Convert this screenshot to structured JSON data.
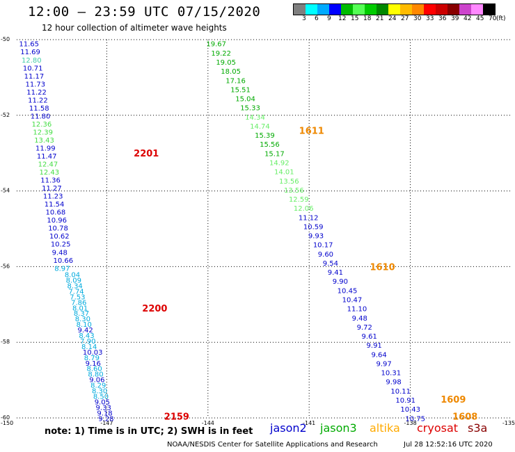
{
  "title": "12:00 – 23:59 UTC 07/15/2020",
  "subtitle": "12 hour collection of altimeter wave heights",
  "legend": {
    "unit": "(ft)",
    "ticks": [
      "3",
      "6",
      "9",
      "12",
      "15",
      "18",
      "21",
      "24",
      "27",
      "30",
      "33",
      "36",
      "39",
      "42",
      "45",
      "70"
    ],
    "colors": [
      "#7f7f7f",
      "#00ffff",
      "#00aaff",
      "#0000ff",
      "#00bb00",
      "#55ff55",
      "#00cc00",
      "#008800",
      "#ffff00",
      "#ffbb00",
      "#ff8800",
      "#ff0000",
      "#cc0000",
      "#880000",
      "#cc44cc",
      "#ff88ff",
      "#000000"
    ]
  },
  "map": {
    "lon_range": [
      -150,
      -135
    ],
    "lat_range": [
      -50,
      -60
    ],
    "lon_ticks": [
      "-150",
      "-147",
      "-144",
      "-141",
      "-138",
      "-135"
    ],
    "lat_ticks": [
      "-50",
      "-52",
      "-54",
      "-56",
      "-58",
      "-60"
    ],
    "grid": "dotted"
  },
  "tracks": [
    {
      "name": "track-west",
      "points": [
        {
          "v": "11.65",
          "c": "#0000cc"
        },
        {
          "v": "11.69",
          "c": "#0000cc"
        },
        {
          "v": "12.80",
          "c": "#44ccaa"
        },
        {
          "v": "10.71",
          "c": "#0000cc"
        },
        {
          "v": "11.17",
          "c": "#0000cc"
        },
        {
          "v": "11.73",
          "c": "#0000cc"
        },
        {
          "v": "11.22",
          "c": "#0000cc"
        },
        {
          "v": "11.22",
          "c": "#0000cc"
        },
        {
          "v": "11.58",
          "c": "#0000cc"
        },
        {
          "v": "11.80",
          "c": "#0000cc"
        },
        {
          "v": "12.36",
          "c": "#44dd44"
        },
        {
          "v": "12.39",
          "c": "#44dd44"
        },
        {
          "v": "13.43",
          "c": "#44dd44"
        },
        {
          "v": "11.99",
          "c": "#0000cc"
        },
        {
          "v": "11.47",
          "c": "#0000cc"
        },
        {
          "v": "12.47",
          "c": "#44dd44"
        },
        {
          "v": "12.43",
          "c": "#44dd44"
        },
        {
          "v": "11.36",
          "c": "#0000cc"
        },
        {
          "v": "11.27",
          "c": "#0000cc"
        },
        {
          "v": "11.23",
          "c": "#0000cc"
        },
        {
          "v": "11.54",
          "c": "#0000cc"
        },
        {
          "v": "10.68",
          "c": "#0000cc"
        },
        {
          "v": "10.96",
          "c": "#0000cc"
        },
        {
          "v": "10.78",
          "c": "#0000cc"
        },
        {
          "v": "10.62",
          "c": "#0000cc"
        },
        {
          "v": "10.25",
          "c": "#0000cc"
        },
        {
          "v": "9.48",
          "c": "#0000cc"
        },
        {
          "v": "10.66",
          "c": "#0000cc"
        },
        {
          "v": "8.97",
          "c": "#00aadd"
        }
      ]
    },
    {
      "name": "track-west-lower-a",
      "points": [
        {
          "v": "8.04",
          "c": "#00aadd"
        },
        {
          "v": "8.09",
          "c": "#00aadd"
        },
        {
          "v": "8.34",
          "c": "#00aadd"
        },
        {
          "v": "7.74",
          "c": "#00aadd"
        },
        {
          "v": "7.53",
          "c": "#00aadd"
        },
        {
          "v": "7.86",
          "c": "#00aadd"
        },
        {
          "v": "8.01",
          "c": "#00aadd"
        },
        {
          "v": "8.37",
          "c": "#00aadd"
        },
        {
          "v": "8.30",
          "c": "#00aadd"
        },
        {
          "v": "8.10",
          "c": "#00aadd"
        },
        {
          "v": "9.42",
          "c": "#0000cc"
        },
        {
          "v": "8.43",
          "c": "#00aadd"
        },
        {
          "v": "7.90",
          "c": "#00aadd"
        },
        {
          "v": "8.14",
          "c": "#00aadd"
        },
        {
          "v": "10.03",
          "c": "#0000cc"
        },
        {
          "v": "8.79",
          "c": "#00aadd"
        },
        {
          "v": "9.16",
          "c": "#0000cc"
        },
        {
          "v": "8.60",
          "c": "#00aadd"
        },
        {
          "v": "8.80",
          "c": "#00aadd"
        },
        {
          "v": "9.06",
          "c": "#0000cc"
        },
        {
          "v": "8.29",
          "c": "#00aadd"
        },
        {
          "v": "8.30",
          "c": "#00aadd"
        },
        {
          "v": "8.50",
          "c": "#00aadd"
        },
        {
          "v": "9.05",
          "c": "#0000cc"
        },
        {
          "v": "9.33",
          "c": "#0000cc"
        },
        {
          "v": "9.18",
          "c": "#0000cc"
        },
        {
          "v": "9.28",
          "c": "#0000cc"
        }
      ]
    },
    {
      "name": "track-east",
      "points": [
        {
          "v": "19.67",
          "c": "#00aa00"
        },
        {
          "v": "19.22",
          "c": "#00aa00"
        },
        {
          "v": "19.05",
          "c": "#00aa00"
        },
        {
          "v": "18.05",
          "c": "#00aa00"
        },
        {
          "v": "17.16",
          "c": "#00aa00"
        },
        {
          "v": "15.51",
          "c": "#00aa00"
        },
        {
          "v": "15.04",
          "c": "#00aa00"
        },
        {
          "v": "15.33",
          "c": "#00aa00"
        },
        {
          "v": "14.34",
          "c": "#66ee66"
        },
        {
          "v": "14.74",
          "c": "#66ee66"
        },
        {
          "v": "15.39",
          "c": "#00aa00"
        },
        {
          "v": "15.56",
          "c": "#00aa00"
        },
        {
          "v": "15.17",
          "c": "#00aa00"
        },
        {
          "v": "14.92",
          "c": "#66ee66"
        },
        {
          "v": "14.01",
          "c": "#66ee66"
        },
        {
          "v": "13.56",
          "c": "#66ee66"
        },
        {
          "v": "13.56",
          "c": "#66ee66"
        },
        {
          "v": "12.59",
          "c": "#66ee66"
        },
        {
          "v": "12.06",
          "c": "#66ee66"
        },
        {
          "v": "11.12",
          "c": "#0000cc"
        },
        {
          "v": "10.59",
          "c": "#0000cc"
        },
        {
          "v": "9.93",
          "c": "#0000cc"
        },
        {
          "v": "10.17",
          "c": "#0000cc"
        },
        {
          "v": "9.60",
          "c": "#0000cc"
        },
        {
          "v": "9.54",
          "c": "#0000cc"
        },
        {
          "v": "9.41",
          "c": "#0000cc"
        },
        {
          "v": "9.90",
          "c": "#0000cc"
        },
        {
          "v": "10.45",
          "c": "#0000cc"
        },
        {
          "v": "10.47",
          "c": "#0000cc"
        },
        {
          "v": "11.10",
          "c": "#0000cc"
        },
        {
          "v": "9.48",
          "c": "#0000cc"
        },
        {
          "v": "9.72",
          "c": "#0000cc"
        },
        {
          "v": "9.61",
          "c": "#0000cc"
        },
        {
          "v": "9.91",
          "c": "#0000cc"
        },
        {
          "v": "9.64",
          "c": "#0000cc"
        },
        {
          "v": "9.97",
          "c": "#0000cc"
        },
        {
          "v": "10.31",
          "c": "#0000cc"
        },
        {
          "v": "9.98",
          "c": "#0000cc"
        },
        {
          "v": "10.11",
          "c": "#0000cc"
        },
        {
          "v": "10.91",
          "c": "#0000cc"
        },
        {
          "v": "10.43",
          "c": "#0000cc"
        },
        {
          "v": "10.75",
          "c": "#0000cc"
        }
      ]
    }
  ],
  "time_labels": [
    {
      "text": "2201",
      "color": "#dd0000"
    },
    {
      "text": "2200",
      "color": "#dd0000"
    },
    {
      "text": "2159",
      "color": "#dd0000"
    },
    {
      "text": "1611",
      "color": "#ee8800"
    },
    {
      "text": "1610",
      "color": "#ee8800"
    },
    {
      "text": "1609",
      "color": "#ee8800"
    },
    {
      "text": "1608",
      "color": "#ee8800"
    }
  ],
  "note": "note: 1) Time is in UTC; 2) SWH is in feet",
  "satellites": [
    {
      "name": "jason2",
      "color": "#0000cc"
    },
    {
      "name": "jason3",
      "color": "#00aa00"
    },
    {
      "name": "altika",
      "color": "#ffaa00"
    },
    {
      "name": "cryosat",
      "color": "#dd0000"
    },
    {
      "name": "s3a",
      "color": "#880000"
    }
  ],
  "footer": {
    "center": "NOAA/NESDIS Center for Satellite Applications and Research",
    "right": "Jul 28 12:52:16 UTC 2020"
  }
}
